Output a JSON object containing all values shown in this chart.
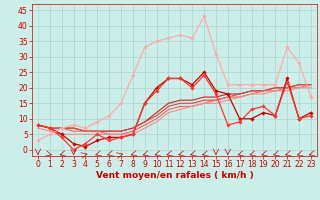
{
  "background_color": "#cceee8",
  "grid_color": "#aad4ce",
  "xlabel": "Vent moyen/en rafales ( km/h )",
  "xlabel_color": "#cc0000",
  "xlabel_fontsize": 6.5,
  "tick_color": "#cc0000",
  "tick_fontsize": 5.5,
  "ylim": [
    -2,
    47
  ],
  "xlim": [
    -0.5,
    23.5
  ],
  "yticks": [
    0,
    5,
    10,
    15,
    20,
    25,
    30,
    35,
    40,
    45
  ],
  "xticks": [
    0,
    1,
    2,
    3,
    4,
    5,
    6,
    7,
    8,
    9,
    10,
    11,
    12,
    13,
    14,
    15,
    16,
    17,
    18,
    19,
    20,
    21,
    22,
    23
  ],
  "lines": [
    {
      "x": [
        0,
        1,
        2,
        3,
        4,
        5,
        6,
        7,
        8,
        9,
        10,
        11,
        12,
        13,
        14,
        15,
        16,
        17,
        18,
        19,
        20,
        21,
        22,
        23
      ],
      "y": [
        8,
        7,
        7,
        7,
        6,
        6,
        6,
        6,
        7,
        9,
        12,
        15,
        16,
        16,
        17,
        17,
        18,
        18,
        19,
        19,
        20,
        20,
        21,
        21
      ],
      "color": "#cc2222",
      "lw": 0.8,
      "marker": null,
      "ms": 0
    },
    {
      "x": [
        0,
        1,
        2,
        3,
        4,
        5,
        6,
        7,
        8,
        9,
        10,
        11,
        12,
        13,
        14,
        15,
        16,
        17,
        18,
        19,
        20,
        21,
        22,
        23
      ],
      "y": [
        8,
        7,
        7,
        7,
        6,
        6,
        6,
        6,
        7,
        9,
        11,
        14,
        15,
        15,
        16,
        16,
        17,
        18,
        19,
        19,
        20,
        20,
        21,
        21
      ],
      "color": "#dd4444",
      "lw": 0.8,
      "marker": null,
      "ms": 0
    },
    {
      "x": [
        0,
        1,
        2,
        3,
        4,
        5,
        6,
        7,
        8,
        9,
        10,
        11,
        12,
        13,
        14,
        15,
        16,
        17,
        18,
        19,
        20,
        21,
        22,
        23
      ],
      "y": [
        8,
        7,
        7,
        6,
        6,
        6,
        5,
        5,
        6,
        8,
        10,
        13,
        14,
        14,
        15,
        16,
        17,
        17,
        18,
        19,
        19,
        20,
        20,
        21
      ],
      "color": "#ee6666",
      "lw": 0.8,
      "marker": null,
      "ms": 0
    },
    {
      "x": [
        0,
        1,
        2,
        3,
        4,
        5,
        6,
        7,
        8,
        9,
        10,
        11,
        12,
        13,
        14,
        15,
        16,
        17,
        18,
        19,
        20,
        21,
        22,
        23
      ],
      "y": [
        7,
        6,
        5,
        5,
        5,
        5,
        5,
        5,
        5,
        7,
        9,
        12,
        13,
        14,
        15,
        15,
        16,
        17,
        18,
        18,
        19,
        19,
        20,
        20
      ],
      "color": "#ff8888",
      "lw": 0.8,
      "marker": null,
      "ms": 0
    },
    {
      "x": [
        0,
        1,
        2,
        3,
        4,
        5,
        6,
        7,
        8,
        9,
        10,
        11,
        12,
        13,
        14,
        15,
        16,
        17,
        18,
        19,
        20,
        21,
        22,
        23
      ],
      "y": [
        8,
        7,
        5,
        2,
        1,
        3,
        4,
        4,
        5,
        15,
        20,
        23,
        23,
        21,
        25,
        19,
        18,
        10,
        10,
        12,
        11,
        23,
        10,
        12
      ],
      "color": "#cc0000",
      "lw": 0.9,
      "marker": "D",
      "ms": 1.8
    },
    {
      "x": [
        0,
        1,
        2,
        3,
        4,
        5,
        6,
        7,
        8,
        9,
        10,
        11,
        12,
        13,
        14,
        15,
        16,
        17,
        18,
        19,
        20,
        21,
        22,
        23
      ],
      "y": [
        8,
        7,
        4,
        0,
        2,
        5,
        3,
        4,
        5,
        15,
        19,
        23,
        23,
        20,
        24,
        18,
        8,
        9,
        13,
        14,
        11,
        22,
        10,
        11
      ],
      "color": "#ff3333",
      "lw": 0.9,
      "marker": "D",
      "ms": 1.8
    },
    {
      "x": [
        0,
        1,
        2,
        3,
        4,
        5,
        6,
        7,
        8,
        9,
        10,
        11,
        12,
        13,
        14,
        15,
        16,
        17,
        18,
        19,
        20,
        21,
        22,
        23
      ],
      "y": [
        3,
        5,
        7,
        8,
        7,
        9,
        11,
        15,
        24,
        33,
        35,
        36,
        37,
        36,
        43,
        31,
        21,
        21,
        21,
        21,
        21,
        33,
        28,
        17
      ],
      "color": "#ffaaaa",
      "lw": 0.9,
      "marker": "D",
      "ms": 1.8
    }
  ],
  "wind_arrows": [
    [
      0,
      -1.5,
      270
    ],
    [
      1,
      -1.5,
      315
    ],
    [
      2,
      -1.5,
      225
    ],
    [
      3,
      -1.5,
      270
    ],
    [
      4,
      -1.5,
      45
    ],
    [
      5,
      -1.5,
      225
    ],
    [
      6,
      -1.5,
      225
    ],
    [
      7,
      -1.5,
      45
    ],
    [
      8,
      -1.5,
      225
    ],
    [
      9,
      -1.5,
      225
    ],
    [
      10,
      -1.5,
      225
    ],
    [
      11,
      -1.5,
      225
    ],
    [
      12,
      -1.5,
      225
    ],
    [
      13,
      -1.5,
      225
    ],
    [
      14,
      -1.5,
      225
    ],
    [
      15,
      -1.5,
      270
    ],
    [
      16,
      -1.5,
      270
    ],
    [
      17,
      -1.5,
      225
    ],
    [
      18,
      -1.5,
      225
    ],
    [
      19,
      -1.5,
      225
    ],
    [
      20,
      -1.5,
      225
    ],
    [
      21,
      -1.5,
      225
    ],
    [
      22,
      -1.5,
      225
    ],
    [
      23,
      -1.5,
      225
    ]
  ]
}
